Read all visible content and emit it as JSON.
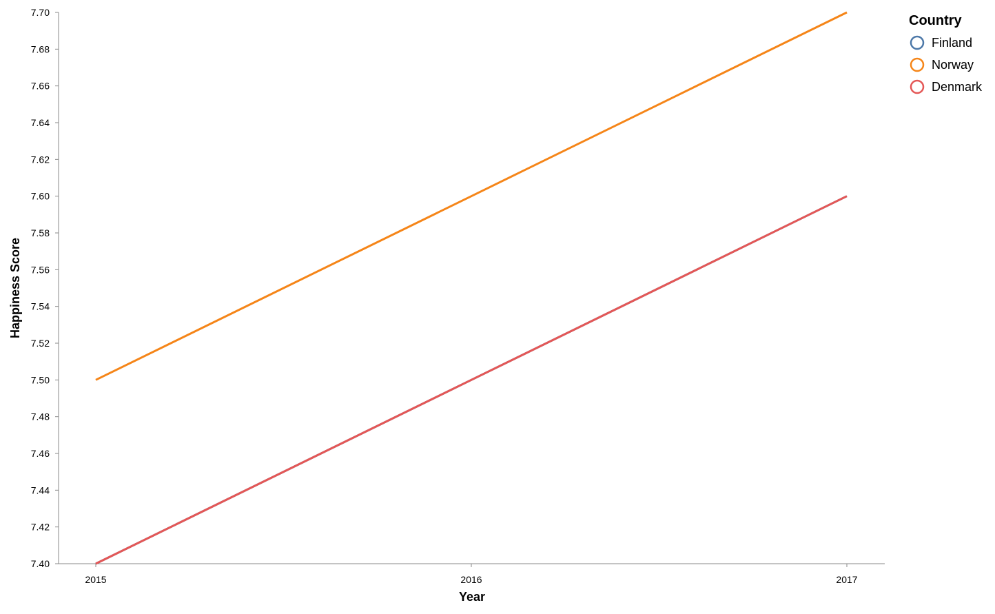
{
  "chart_data": {
    "type": "line",
    "xlabel": "Year",
    "ylabel": "Happiness Score",
    "x": [
      "2015",
      "2016",
      "2017"
    ],
    "ylim": [
      7.4,
      7.7
    ],
    "yticks": [
      "7.40",
      "7.42",
      "7.44",
      "7.46",
      "7.48",
      "7.50",
      "7.52",
      "7.54",
      "7.56",
      "7.58",
      "7.60",
      "7.62",
      "7.64",
      "7.66",
      "7.68",
      "7.70"
    ],
    "grid": false,
    "legend": {
      "title": "Country",
      "placement": "top-right"
    },
    "series": [
      {
        "name": "Finland",
        "color": "#4c78a8",
        "values": [
          7.4,
          7.5,
          7.6
        ]
      },
      {
        "name": "Norway",
        "color": "#f58518",
        "values": [
          7.5,
          7.6,
          7.7
        ]
      },
      {
        "name": "Denmark",
        "color": "#e45756",
        "values": [
          7.4,
          7.5,
          7.6
        ]
      }
    ]
  }
}
